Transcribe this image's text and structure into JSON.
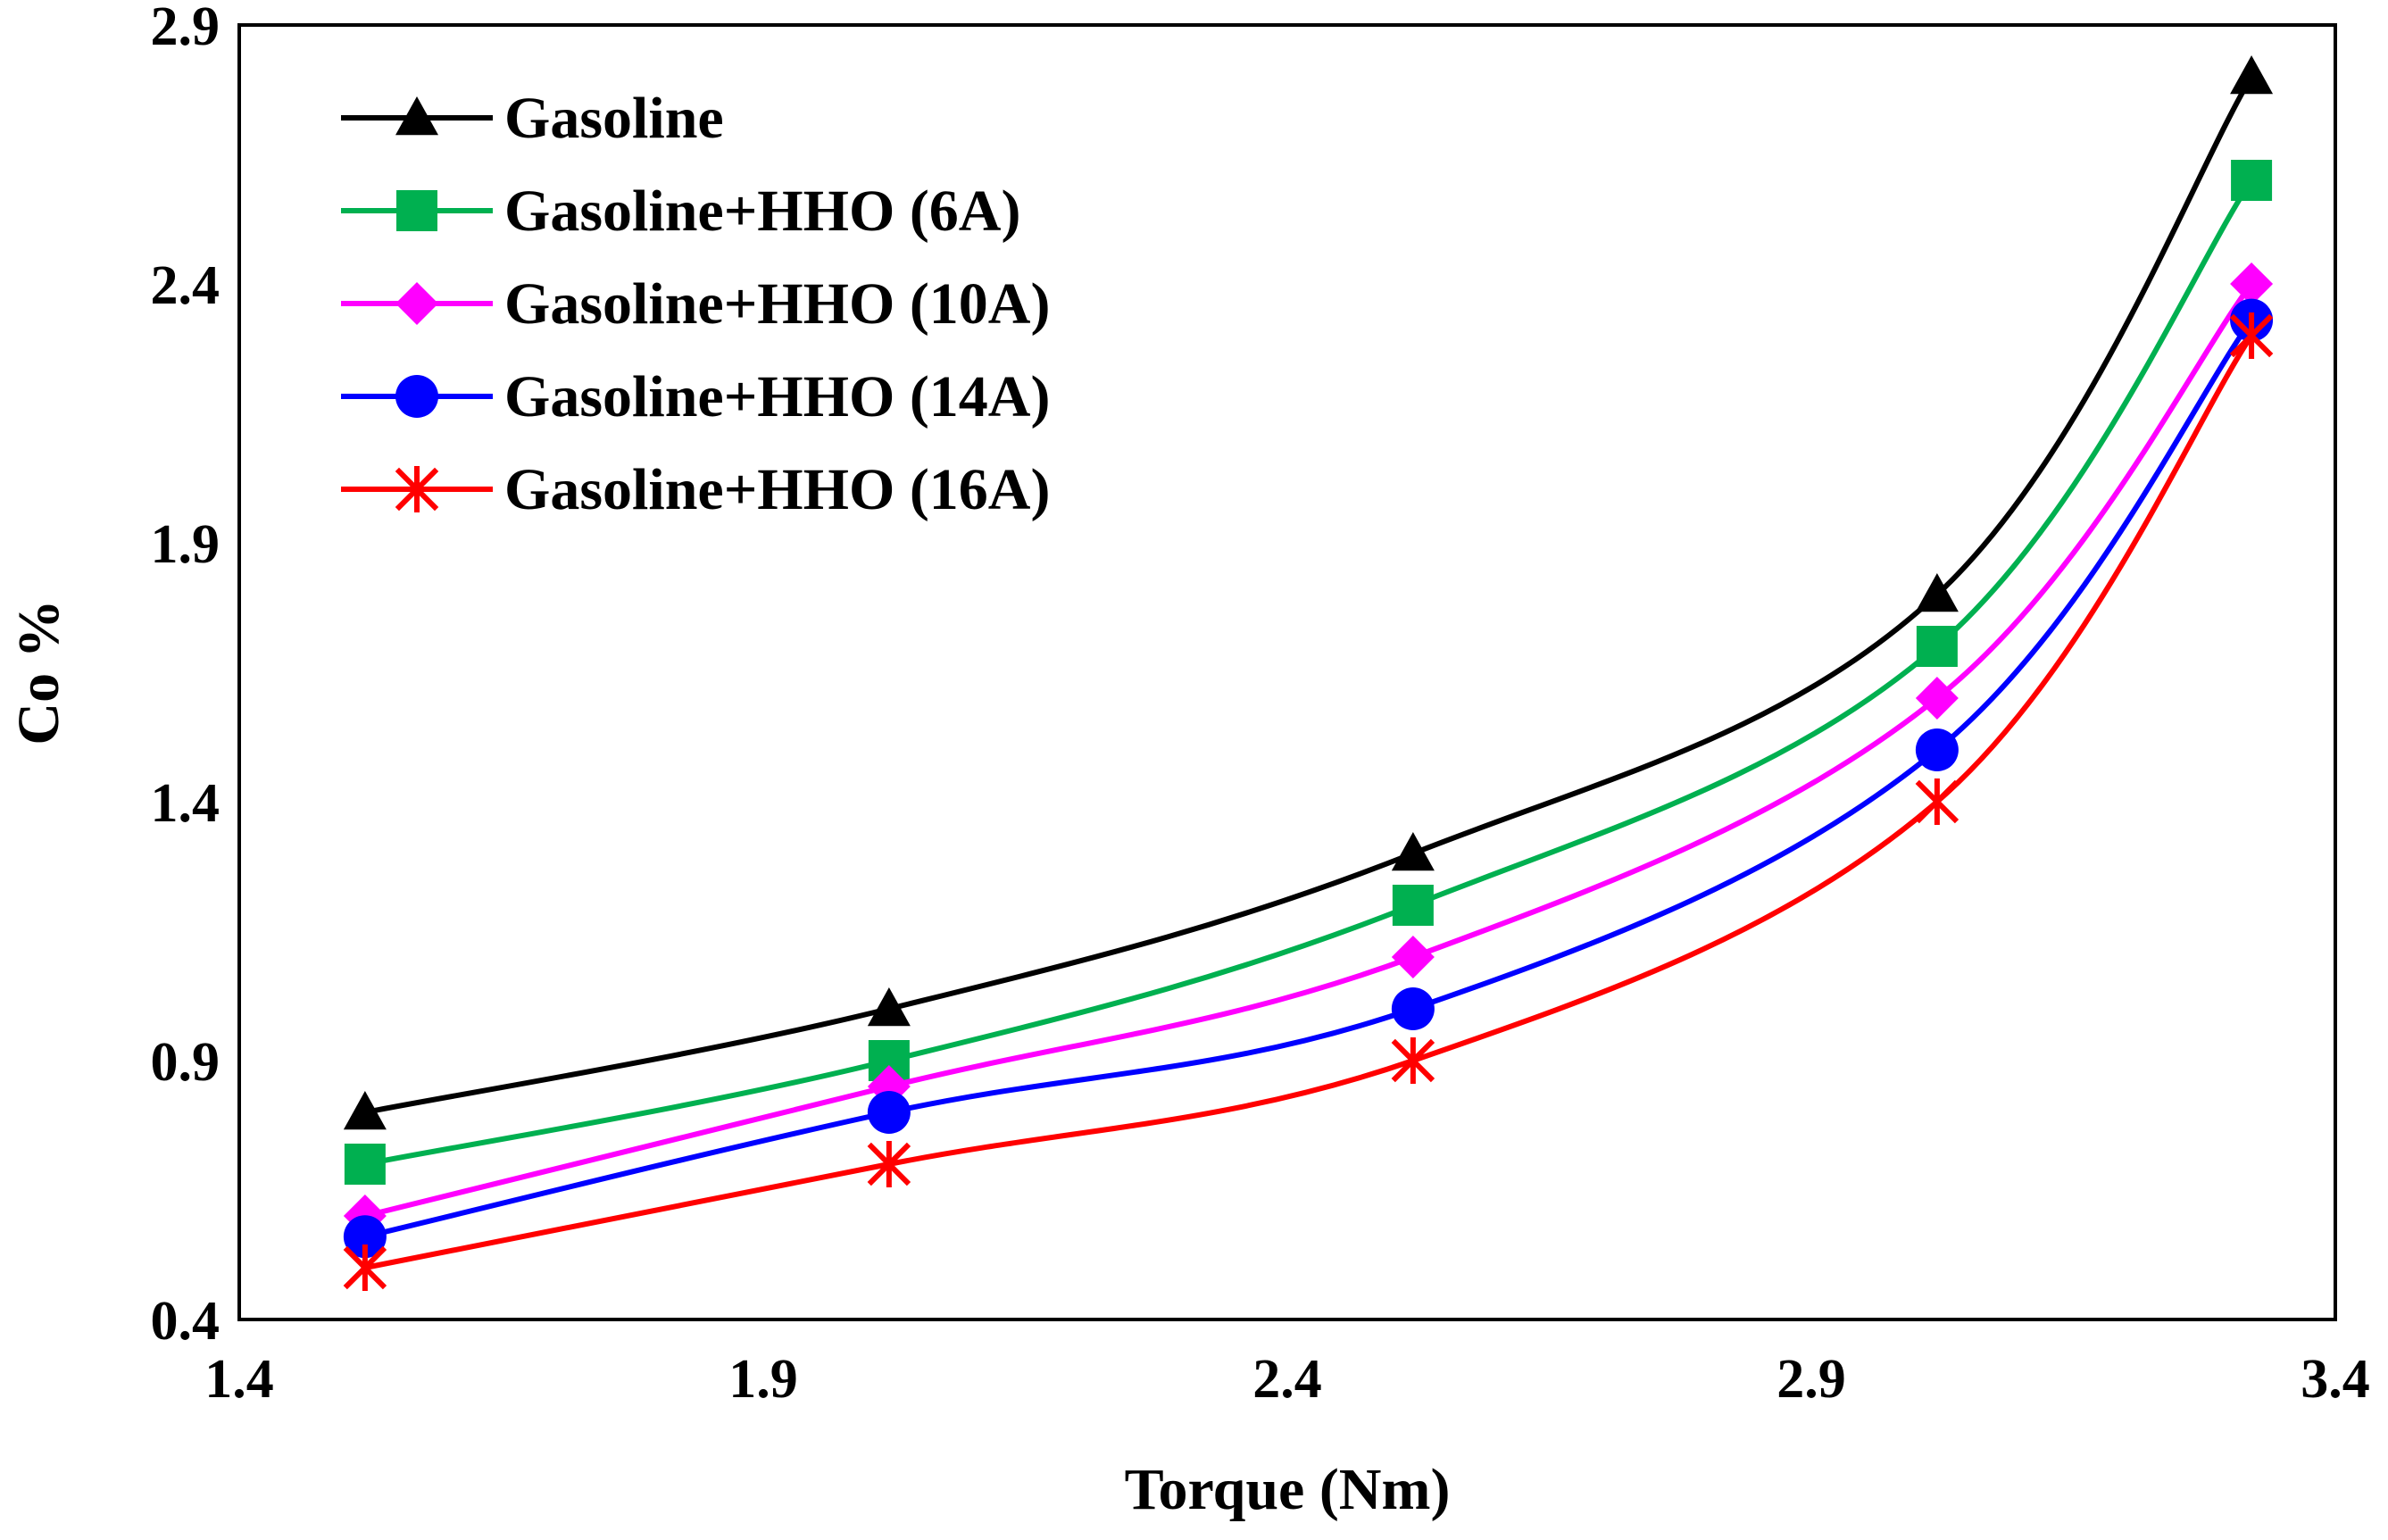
{
  "chart_data": {
    "type": "line",
    "title": "",
    "xlabel": "Torque (Nm)",
    "ylabel": "Co %",
    "xlim": [
      1.4,
      3.4
    ],
    "ylim": [
      0.4,
      2.9
    ],
    "xticks": [
      1.4,
      1.9,
      2.4,
      2.9,
      3.4
    ],
    "yticks": [
      0.4,
      0.9,
      1.4,
      1.9,
      2.4,
      2.9
    ],
    "xtick_labels": [
      "1.4",
      "1.9",
      "2.4",
      "2.9",
      "3.4"
    ],
    "ytick_labels": [
      "0.4",
      "0.9",
      "1.4",
      "1.9",
      "2.4",
      "2.9"
    ],
    "grid": false,
    "legend_position": "top-left",
    "x": [
      1.52,
      2.02,
      2.52,
      3.02,
      3.32
    ],
    "series": [
      {
        "name": "Gasoline",
        "values": [
          0.8,
          1.0,
          1.3,
          1.8,
          2.8
        ],
        "color": "#000000",
        "marker": "triangle"
      },
      {
        "name": "Gasoline+HHO (6A)",
        "values": [
          0.7,
          0.9,
          1.2,
          1.7,
          2.6
        ],
        "color": "#00b050",
        "marker": "square"
      },
      {
        "name": "Gasoline+HHO (10A)",
        "values": [
          0.6,
          0.85,
          1.1,
          1.6,
          2.4
        ],
        "color": "#ff00ff",
        "marker": "diamond"
      },
      {
        "name": "Gasoline+HHO (14A)",
        "values": [
          0.56,
          0.8,
          1.0,
          1.5,
          2.33
        ],
        "color": "#0000ff",
        "marker": "circle"
      },
      {
        "name": "Gasoline+HHO (16A)",
        "values": [
          0.5,
          0.7,
          0.9,
          1.4,
          2.3
        ],
        "color": "#ff0000",
        "marker": "star"
      }
    ]
  }
}
